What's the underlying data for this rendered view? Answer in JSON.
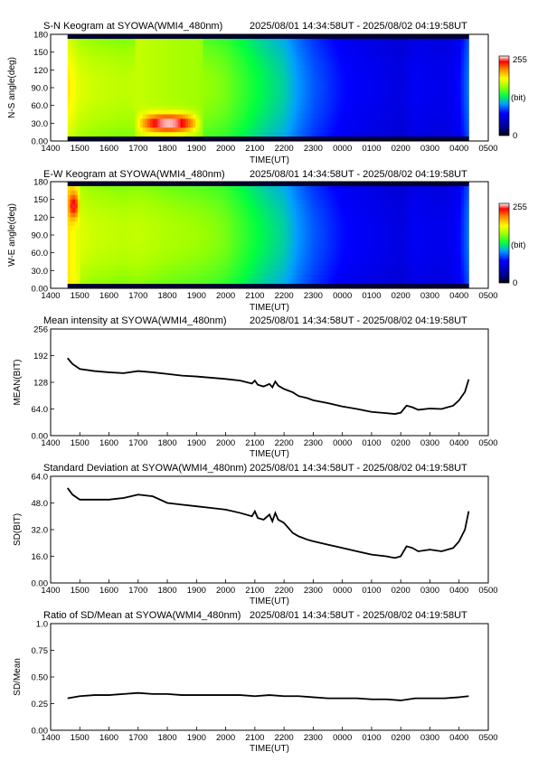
{
  "chart_data": [
    {
      "type": "heatmap",
      "title": "S-N Keogram at SYOWA(WMI4_480nm)",
      "time_range": "2025/08/01 14:34:58UT - 2025/08/02 04:19:58UT",
      "xlabel": "TIME(UT)",
      "ylabel": "N-S angle(deg)",
      "x_ticks": [
        "1400",
        "1500",
        "1600",
        "1700",
        "1800",
        "1900",
        "2000",
        "2100",
        "2200",
        "2300",
        "0000",
        "0100",
        "0200",
        "0300",
        "0400",
        "0500"
      ],
      "y_ticks": [
        "0.00",
        "30.0",
        "60.0",
        "90.0",
        "120",
        "150",
        "180"
      ],
      "colorbar": {
        "min": "0",
        "max": "255",
        "unit": "(bit)"
      },
      "x_hours": [
        14.58,
        15,
        15.5,
        16,
        16.5,
        17,
        17.5,
        18,
        18.5,
        19,
        19.5,
        20,
        20.5,
        21,
        21.5,
        22,
        22.5,
        23,
        23.5,
        24,
        24.5,
        25,
        25.5,
        26,
        26.5,
        27,
        27.5,
        28,
        28.33
      ],
      "intensity_profile": [
        190,
        175,
        170,
        168,
        166,
        168,
        165,
        162,
        160,
        158,
        155,
        150,
        140,
        130,
        122,
        115,
        100,
        88,
        80,
        72,
        68,
        65,
        62,
        58,
        66,
        64,
        62,
        70,
        95
      ],
      "features": [
        {
          "label": "bright aurora",
          "t_start": 16.9,
          "t_end": 19.2,
          "angle_center": 30,
          "angle_halfwidth": 16,
          "peak": 255
        }
      ]
    },
    {
      "type": "heatmap",
      "title": "E-W Keogram at SYOWA(WMI4_480nm)",
      "time_range": "2025/08/01 14:34:58UT - 2025/08/02 04:19:58UT",
      "xlabel": "TIME(UT)",
      "ylabel": "W-E angle(deg)",
      "x_ticks": [
        "1400",
        "1500",
        "1600",
        "1700",
        "1800",
        "1900",
        "2000",
        "2100",
        "2200",
        "2300",
        "0000",
        "0100",
        "0200",
        "0300",
        "0400",
        "0500"
      ],
      "y_ticks": [
        "0.00",
        "30.0",
        "60.0",
        "90.0",
        "120",
        "150",
        "180"
      ],
      "colorbar": {
        "min": "0",
        "max": "255",
        "unit": "(bit)"
      },
      "x_hours": [
        14.58,
        15,
        15.5,
        16,
        16.5,
        17,
        17.5,
        18,
        18.5,
        19,
        19.5,
        20,
        20.5,
        21,
        21.5,
        22,
        22.5,
        23,
        23.5,
        24,
        24.5,
        25,
        25.5,
        26,
        26.5,
        27,
        27.5,
        28,
        28.33
      ],
      "intensity_profile": [
        190,
        175,
        170,
        168,
        166,
        168,
        165,
        162,
        160,
        158,
        155,
        150,
        140,
        130,
        122,
        115,
        100,
        88,
        80,
        72,
        68,
        65,
        62,
        58,
        66,
        64,
        62,
        70,
        95
      ],
      "features": [
        {
          "label": "bright edge",
          "t_start": 14.58,
          "t_end": 15.0,
          "angle_center": 140,
          "angle_halfwidth": 22,
          "peak": 240
        }
      ]
    },
    {
      "type": "line",
      "title": "Mean intensity at SYOWA(WMI4_480nm)",
      "time_range": "2025/08/01 14:34:58UT - 2025/08/02 04:19:58UT",
      "xlabel": "TIME(UT)",
      "ylabel": "MEAN(BIT)",
      "x_ticks": [
        "1400",
        "1500",
        "1600",
        "1700",
        "1800",
        "1900",
        "2000",
        "2100",
        "2200",
        "2300",
        "0000",
        "0100",
        "0200",
        "0300",
        "0400",
        "0500"
      ],
      "y_ticks": [
        "0.00",
        "64.0",
        "128",
        "192",
        "256"
      ],
      "ylim": [
        0,
        256
      ],
      "x_hours": [
        14.58,
        14.75,
        15.0,
        15.5,
        16.0,
        16.5,
        17.0,
        17.5,
        18.0,
        18.5,
        19.0,
        19.5,
        20.0,
        20.5,
        20.9,
        21.0,
        21.1,
        21.3,
        21.5,
        21.6,
        21.7,
        21.8,
        22.0,
        22.3,
        22.5,
        22.8,
        23.0,
        23.5,
        24.0,
        24.5,
        25.0,
        25.5,
        25.8,
        26.0,
        26.2,
        26.4,
        26.6,
        27.0,
        27.4,
        27.8,
        28.0,
        28.2,
        28.33
      ],
      "y": [
        186,
        172,
        160,
        155,
        152,
        150,
        155,
        152,
        148,
        144,
        142,
        139,
        136,
        132,
        125,
        132,
        122,
        118,
        124,
        116,
        130,
        120,
        112,
        104,
        95,
        90,
        85,
        78,
        70,
        64,
        57,
        54,
        52,
        55,
        72,
        68,
        62,
        65,
        64,
        72,
        85,
        105,
        135
      ]
    },
    {
      "type": "line",
      "title": "Standard Deviation at SYOWA(WMI4_480nm)",
      "time_range": "2025/08/01 14:34:58UT - 2025/08/02 04:19:58UT",
      "xlabel": "TIME(UT)",
      "ylabel": "SD(BIT)",
      "x_ticks": [
        "1400",
        "1500",
        "1600",
        "1700",
        "1800",
        "1900",
        "2000",
        "2100",
        "2200",
        "2300",
        "0000",
        "0100",
        "0200",
        "0300",
        "0400",
        "0500"
      ],
      "y_ticks": [
        "0.00",
        "16.0",
        "32.0",
        "48.0",
        "64.0"
      ],
      "ylim": [
        0,
        64
      ],
      "x_hours": [
        14.58,
        14.75,
        15.0,
        15.5,
        16.0,
        16.5,
        17.0,
        17.5,
        18.0,
        18.5,
        19.0,
        19.5,
        20.0,
        20.5,
        20.9,
        21.0,
        21.1,
        21.3,
        21.5,
        21.6,
        21.7,
        21.8,
        22.0,
        22.3,
        22.5,
        22.8,
        23.0,
        23.5,
        24.0,
        24.5,
        25.0,
        25.5,
        25.8,
        26.0,
        26.2,
        26.4,
        26.6,
        27.0,
        27.4,
        27.8,
        28.0,
        28.2,
        28.33
      ],
      "y": [
        57,
        53,
        50,
        50,
        50,
        51,
        53,
        52,
        48,
        47,
        46,
        45,
        44,
        42,
        40,
        43,
        39,
        38,
        41,
        37,
        42,
        38,
        36,
        30,
        28,
        26,
        25,
        23,
        21,
        19,
        17,
        16,
        15,
        16,
        22,
        21,
        19,
        20,
        19,
        21,
        25,
        32,
        43
      ]
    },
    {
      "type": "line",
      "title": "Ratio of SD/Mean at SYOWA(WMI4_480nm)",
      "time_range": "2025/08/01 14:34:58UT - 2025/08/02 04:19:58UT",
      "xlabel": "TIME(UT)",
      "ylabel": "SD/Mean",
      "x_ticks": [
        "1400",
        "1500",
        "1600",
        "1700",
        "1800",
        "1900",
        "2000",
        "2100",
        "2200",
        "2300",
        "0000",
        "0100",
        "0200",
        "0300",
        "0400",
        "0500"
      ],
      "y_ticks": [
        "0.00",
        "0.25",
        "0.50",
        "0.75",
        "1.0"
      ],
      "ylim": [
        0,
        1
      ],
      "x_hours": [
        14.58,
        15.0,
        15.5,
        16.0,
        16.5,
        17.0,
        17.5,
        18.0,
        18.5,
        19.0,
        19.5,
        20.0,
        20.5,
        21.0,
        21.5,
        22.0,
        22.5,
        23.0,
        23.5,
        24.0,
        24.5,
        25.0,
        25.5,
        26.0,
        26.5,
        27.0,
        27.5,
        28.0,
        28.33
      ],
      "y": [
        0.3,
        0.32,
        0.33,
        0.33,
        0.34,
        0.35,
        0.34,
        0.34,
        0.33,
        0.33,
        0.33,
        0.33,
        0.33,
        0.32,
        0.33,
        0.32,
        0.32,
        0.31,
        0.3,
        0.3,
        0.3,
        0.29,
        0.29,
        0.28,
        0.3,
        0.3,
        0.3,
        0.31,
        0.32
      ]
    }
  ]
}
